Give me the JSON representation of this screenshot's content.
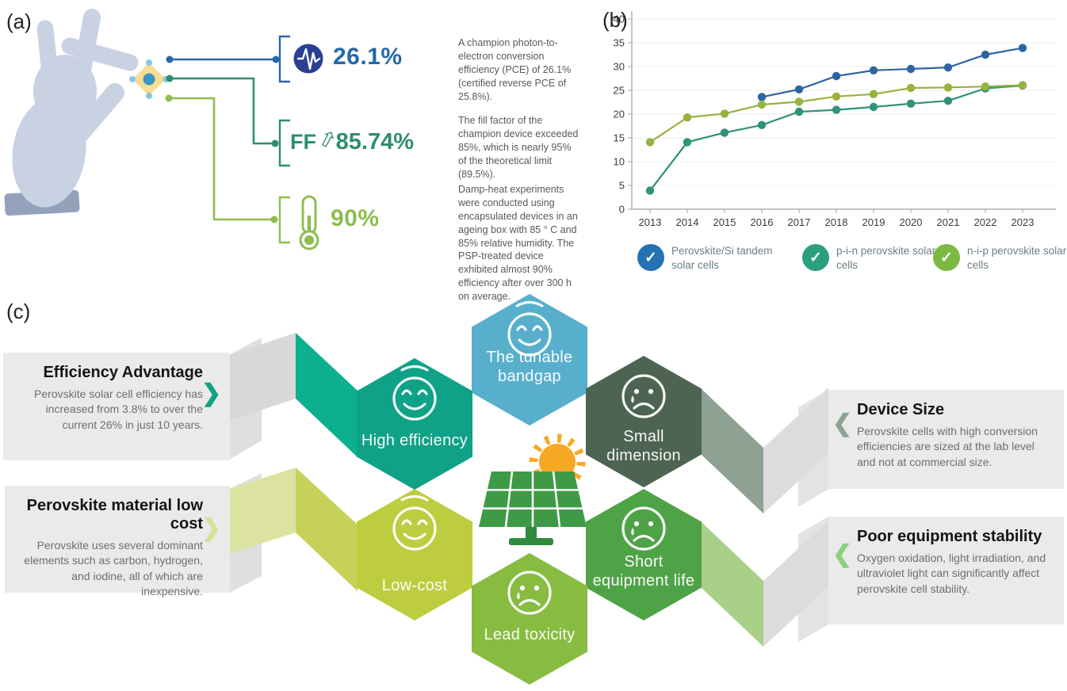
{
  "panel_a": {
    "label": "(a)",
    "metrics": [
      {
        "icon": "pulse-icon",
        "value": "26.1%",
        "value_color": "#2368A9",
        "description": "A champion photon-to-electron conversion efficiency (PCE) of 26.1% (certified reverse PCE of 25.8%)."
      },
      {
        "icon": "arrow-up-icon",
        "prefix": "FF",
        "arrow_glyph": "⇧",
        "value": "85.74%",
        "value_color": "#2D8E71",
        "description": "The fill factor of the champion device exceeded 85%, which is nearly 95% of the theoretical limit (89.5%)."
      },
      {
        "icon": "thermometer-icon",
        "value": "90%",
        "value_color": "#8EBD4E",
        "description": "Damp-heat experiments were conducted using encapsulated devices in an ageing box with 85 ° C and 85% relative humidity. The PSP-treated device exhibited almost 90% efficiency after over 300 h on average."
      }
    ]
  },
  "panel_b": {
    "label": "(b)",
    "legend_check": "✓"
  },
  "chart_data": {
    "type": "line",
    "title": "",
    "xlabel": "",
    "ylabel": "",
    "x": [
      2013,
      2014,
      2015,
      2016,
      2017,
      2018,
      2019,
      2020,
      2021,
      2022,
      2023
    ],
    "ylim": [
      0,
      40
    ],
    "yticks": [
      0,
      5,
      10,
      15,
      20,
      25,
      30,
      35,
      40
    ],
    "grid": true,
    "legend_position": "bottom",
    "series": [
      {
        "name": "Perovskite/Si tandem solar cells",
        "color": "#2E64A4",
        "legend_color": "#2272B4",
        "x": [
          2016,
          2017,
          2018,
          2019,
          2020,
          2021,
          2022,
          2023
        ],
        "values": [
          23.6,
          25.2,
          28.0,
          29.2,
          29.5,
          29.8,
          32.5,
          33.9
        ]
      },
      {
        "name": "p-i-n perovskite solar cells",
        "color": "#2E9377",
        "legend_color": "#2AA07E",
        "x": [
          2013,
          2014,
          2015,
          2016,
          2017,
          2018,
          2019,
          2020,
          2021,
          2022,
          2023
        ],
        "values": [
          3.9,
          14.1,
          16.1,
          17.7,
          20.5,
          20.9,
          21.5,
          22.2,
          22.8,
          25.4,
          26.0
        ]
      },
      {
        "name": "n-i-p perovskite solar cells",
        "color": "#97B33E",
        "legend_color": "#7CB942",
        "x": [
          2013,
          2014,
          2015,
          2016,
          2017,
          2018,
          2019,
          2020,
          2021,
          2022,
          2023
        ],
        "values": [
          14.1,
          19.3,
          20.1,
          22.0,
          22.6,
          23.7,
          24.2,
          25.5,
          25.6,
          25.8,
          26.1
        ]
      }
    ]
  },
  "panel_c": {
    "label": "(c)",
    "hexagons": [
      {
        "id": "tunable-bandgap",
        "label": "The tunable bandgap",
        "mood": "happy",
        "color": "#58AFCB"
      },
      {
        "id": "high-efficiency",
        "label": "High efficiency",
        "mood": "happy",
        "color": "#0FA287"
      },
      {
        "id": "small-dimension",
        "label": "Small dimension",
        "mood": "sad",
        "color": "#4D6452"
      },
      {
        "id": "low-cost",
        "label": "Low-cost",
        "mood": "happy",
        "color": "#BECD3F"
      },
      {
        "id": "short-equipment-life",
        "label": "Short equipment life",
        "mood": "sad",
        "color": "#4FA347"
      },
      {
        "id": "lead-toxicity",
        "label": "Lead toxicity",
        "mood": "sad",
        "color": "#87BC41"
      }
    ],
    "cards": [
      {
        "title": "Efficiency Advantage",
        "side": "left",
        "body": "Perovskite solar cell efficiency has increased from 3.8% to over the current 26% in just 10 years."
      },
      {
        "title": "Perovskite material low cost",
        "side": "left",
        "body": "Perovskite uses several dominant elements such as carbon, hydrogen, and iodine, all of which are inexpensive."
      },
      {
        "title": "Device Size",
        "side": "right",
        "body": "Perovskite cells with high conversion efficiencies are sized at the lab level and not at commercial size."
      },
      {
        "title": "Poor equipment stability",
        "side": "right",
        "body": "Oxygen oxidation, light irradiation, and ultraviolet light can significantly affect perovskite cell stability."
      }
    ],
    "chevron_right": "❯",
    "chevron_left": "❮"
  }
}
